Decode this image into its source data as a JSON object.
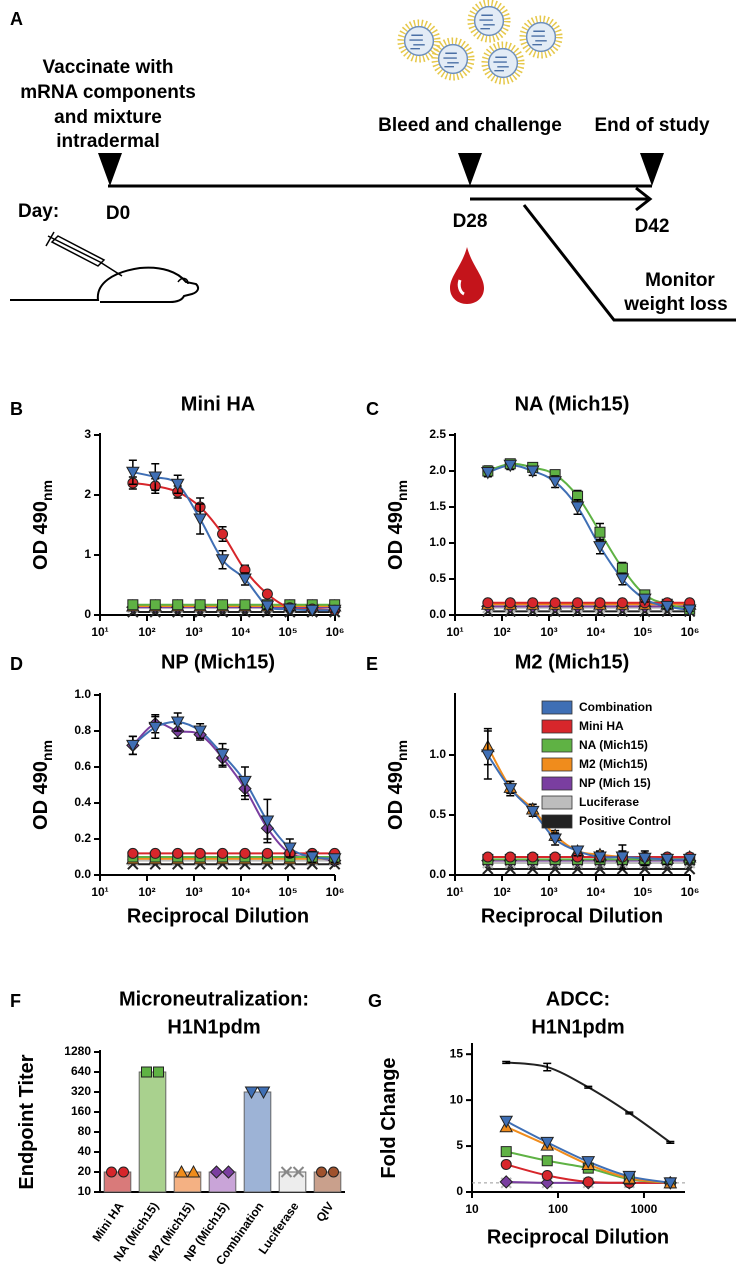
{
  "panel_a": {
    "letter": "A",
    "vaccinate": [
      "Vaccinate with",
      "mRNA components",
      "and mixture",
      "intradermal"
    ],
    "bleed": "Bleed and challenge",
    "end": "End of study",
    "day": "Day:",
    "d0": "D0",
    "d28": "D28",
    "d42": "D42",
    "monitor": [
      "Monitor",
      "weight loss"
    ]
  },
  "chart_data": [
    {
      "type": "line",
      "panel": "B",
      "title": "Mini HA",
      "ylabel": "OD 490",
      "ylabel_sub": "nm",
      "xscale": "log",
      "x": [
        50,
        150,
        450,
        1350,
        4050,
        12150,
        36450,
        109350,
        328050,
        984150
      ],
      "xlim": [
        10,
        1000000
      ],
      "xticks": [
        {
          "value": 10,
          "label": "10¹"
        },
        {
          "value": 100,
          "label": "10²"
        },
        {
          "value": 1000,
          "label": "10³"
        },
        {
          "value": 10000,
          "label": "10⁴"
        },
        {
          "value": 100000,
          "label": "10⁵"
        },
        {
          "value": 1000000,
          "label": "10⁶"
        }
      ],
      "ylim": [
        0,
        3
      ],
      "yticks": [
        0,
        1,
        2,
        3
      ],
      "series": [
        {
          "name": "Combination",
          "color": "#3f6fb5",
          "marker": "triangle-down",
          "values": [
            2.38,
            2.3,
            2.18,
            1.6,
            0.92,
            0.6,
            0.15,
            0.1,
            0.08,
            0.08
          ],
          "errors": [
            0.2,
            0.22,
            0.15,
            0.25,
            0.15,
            0.1,
            0.05,
            0.03,
            0.03,
            0.03
          ]
        },
        {
          "name": "Mini HA",
          "color": "#d7262b",
          "marker": "circle",
          "values": [
            2.2,
            2.15,
            2.05,
            1.8,
            1.35,
            0.75,
            0.35,
            0.12,
            0.1,
            0.08
          ],
          "errors": [
            0.1,
            0.12,
            0.1,
            0.15,
            0.12,
            0.08,
            0.05,
            0.03,
            0.02,
            0.02
          ]
        },
        {
          "name": "NA (Mich15)",
          "color": "#5fb244",
          "marker": "square",
          "values": [
            0.17,
            0.17,
            0.17,
            0.17,
            0.17,
            0.17,
            0.17,
            0.17,
            0.17,
            0.17
          ]
        },
        {
          "name": "M2 (Mich15)",
          "color": "#f08c1c",
          "marker": "triangle",
          "values": [
            0.15,
            0.15,
            0.15,
            0.15,
            0.15,
            0.15,
            0.15,
            0.15,
            0.15,
            0.15
          ]
        },
        {
          "name": "NP (Mich 15)",
          "color": "#7a3ea0",
          "marker": "diamond",
          "values": [
            0.13,
            0.13,
            0.13,
            0.13,
            0.13,
            0.13,
            0.13,
            0.13,
            0.13,
            0.13
          ]
        },
        {
          "name": "Luciferase",
          "color": "#bdbdbd",
          "marker": "x",
          "values": [
            0.12,
            0.12,
            0.12,
            0.12,
            0.12,
            0.12,
            0.12,
            0.12,
            0.12,
            0.12
          ]
        },
        {
          "name": "Positive Control",
          "color": "#222222",
          "marker": "x",
          "values": [
            0.05,
            0.05,
            0.05,
            0.05,
            0.05,
            0.05,
            0.05,
            0.05,
            0.05,
            0.05
          ]
        }
      ]
    },
    {
      "type": "line",
      "panel": "C",
      "title": "NA (Mich15)",
      "ylabel": "OD 490",
      "ylabel_sub": "nm",
      "xscale": "log",
      "x": [
        50,
        150,
        450,
        1350,
        4050,
        12150,
        36450,
        109350,
        328050,
        984150
      ],
      "xlim": [
        10,
        1000000
      ],
      "xticks": [
        {
          "value": 10,
          "label": "10¹"
        },
        {
          "value": 100,
          "label": "10²"
        },
        {
          "value": 1000,
          "label": "10³"
        },
        {
          "value": 10000,
          "label": "10⁴"
        },
        {
          "value": 100000,
          "label": "10⁵"
        },
        {
          "value": 1000000,
          "label": "10⁶"
        }
      ],
      "ylim": [
        0,
        2.5
      ],
      "yticks": [
        {
          "value": 0,
          "label": "0.0"
        },
        0.5,
        {
          "value": 1,
          "label": "1.0"
        },
        1.5,
        {
          "value": 2,
          "label": "2.0"
        },
        2.5
      ],
      "series": [
        {
          "name": "Combination",
          "color": "#3f6fb5",
          "marker": "triangle-down",
          "values": [
            1.98,
            2.08,
            2.0,
            1.85,
            1.5,
            0.95,
            0.5,
            0.22,
            0.12,
            0.07
          ],
          "errors": [
            0.06,
            0.06,
            0.06,
            0.08,
            0.1,
            0.1,
            0.08,
            0.04,
            0.03,
            0.02
          ]
        },
        {
          "name": "Mini HA",
          "color": "#d7262b",
          "marker": "circle",
          "values": [
            0.17,
            0.17,
            0.17,
            0.17,
            0.17,
            0.17,
            0.17,
            0.17,
            0.17,
            0.17
          ]
        },
        {
          "name": "NA (Mich15)",
          "color": "#5fb244",
          "marker": "square",
          "values": [
            2.0,
            2.1,
            2.05,
            1.95,
            1.65,
            1.15,
            0.65,
            0.28,
            0.15,
            0.08
          ],
          "errors": [
            0.07,
            0.06,
            0.05,
            0.06,
            0.08,
            0.12,
            0.08,
            0.05,
            0.03,
            0.02
          ]
        },
        {
          "name": "M2 (Mich15)",
          "color": "#f08c1c",
          "marker": "triangle",
          "values": [
            0.15,
            0.15,
            0.15,
            0.15,
            0.15,
            0.15,
            0.15,
            0.15,
            0.15,
            0.15
          ]
        },
        {
          "name": "NP (Mich 15)",
          "color": "#7a3ea0",
          "marker": "diamond",
          "values": [
            0.12,
            0.12,
            0.12,
            0.12,
            0.12,
            0.12,
            0.12,
            0.12,
            0.12,
            0.12
          ]
        },
        {
          "name": "Luciferase",
          "color": "#bdbdbd",
          "marker": "x",
          "values": [
            0.1,
            0.1,
            0.1,
            0.1,
            0.1,
            0.1,
            0.1,
            0.1,
            0.1,
            0.1
          ]
        },
        {
          "name": "Positive Control",
          "color": "#222222",
          "marker": "x",
          "values": [
            0.05,
            0.05,
            0.05,
            0.05,
            0.05,
            0.05,
            0.05,
            0.05,
            0.05,
            0.05
          ]
        }
      ]
    },
    {
      "type": "line",
      "panel": "D",
      "title": "NP (Mich15)",
      "ylabel": "OD 490",
      "ylabel_sub": "nm",
      "xlabel": "Reciprocal Dilution",
      "xscale": "log",
      "x": [
        50,
        150,
        450,
        1350,
        4050,
        12150,
        36450,
        109350,
        328050,
        984150
      ],
      "xlim": [
        10,
        1000000
      ],
      "xticks": [
        {
          "value": 10,
          "label": "10¹"
        },
        {
          "value": 100,
          "label": "10²"
        },
        {
          "value": 1000,
          "label": "10³"
        },
        {
          "value": 10000,
          "label": "10⁴"
        },
        {
          "value": 100000,
          "label": "10⁵"
        },
        {
          "value": 1000000,
          "label": "10⁶"
        }
      ],
      "ylim": [
        0,
        1
      ],
      "yticks": [
        {
          "value": 0,
          "label": "0.0"
        },
        0.2,
        0.4,
        0.6,
        0.8,
        {
          "value": 1,
          "label": "1.0"
        }
      ],
      "series": [
        {
          "name": "Combination",
          "color": "#3f6fb5",
          "marker": "triangle-down",
          "values": [
            0.72,
            0.82,
            0.85,
            0.8,
            0.67,
            0.52,
            0.3,
            0.15,
            0.1,
            0.09
          ],
          "errors": [
            0.05,
            0.06,
            0.05,
            0.04,
            0.06,
            0.08,
            0.12,
            0.05,
            0.03,
            0.02
          ]
        },
        {
          "name": "Mini HA",
          "color": "#d7262b",
          "marker": "circle",
          "values": [
            0.12,
            0.12,
            0.12,
            0.12,
            0.12,
            0.12,
            0.12,
            0.12,
            0.12,
            0.12
          ]
        },
        {
          "name": "NA (Mich15)",
          "color": "#5fb244",
          "marker": "square",
          "values": [
            0.1,
            0.1,
            0.1,
            0.1,
            0.1,
            0.1,
            0.1,
            0.1,
            0.1,
            0.1
          ]
        },
        {
          "name": "M2 (Mich15)",
          "color": "#f08c1c",
          "marker": "triangle",
          "values": [
            0.09,
            0.09,
            0.09,
            0.09,
            0.09,
            0.09,
            0.09,
            0.09,
            0.09,
            0.09
          ]
        },
        {
          "name": "NP (Mich 15)",
          "color": "#7a3ea0",
          "marker": "diamond",
          "values": [
            0.72,
            0.84,
            0.8,
            0.78,
            0.65,
            0.48,
            0.26,
            0.12,
            0.1,
            0.08
          ],
          "errors": [
            0.05,
            0.05,
            0.04,
            0.03,
            0.05,
            0.06,
            0.06,
            0.04,
            0.02,
            0.02
          ]
        },
        {
          "name": "Luciferase",
          "color": "#bdbdbd",
          "marker": "x",
          "values": [
            0.08,
            0.08,
            0.08,
            0.08,
            0.08,
            0.08,
            0.08,
            0.08,
            0.08,
            0.08
          ]
        },
        {
          "name": "Positive Control",
          "color": "#222222",
          "marker": "x",
          "values": [
            0.06,
            0.06,
            0.06,
            0.06,
            0.06,
            0.06,
            0.06,
            0.06,
            0.06,
            0.06
          ]
        }
      ]
    },
    {
      "type": "line",
      "panel": "E",
      "title": "M2 (Mich15)",
      "ylabel": "OD 490",
      "ylabel_sub": "nm",
      "xlabel": "Reciprocal Dilution",
      "xscale": "log",
      "legend": "upper right",
      "x": [
        50,
        150,
        450,
        1350,
        4050,
        12150,
        36450,
        109350,
        328050,
        984150
      ],
      "xlim": [
        10,
        1000000
      ],
      "xticks": [
        {
          "value": 10,
          "label": "10¹"
        },
        {
          "value": 100,
          "label": "10²"
        },
        {
          "value": 1000,
          "label": "10³"
        },
        {
          "value": 10000,
          "label": "10⁴"
        },
        {
          "value": 100000,
          "label": "10⁵"
        },
        {
          "value": 1000000,
          "label": "10⁶"
        }
      ],
      "ylim": [
        0,
        1.5
      ],
      "yticks": [
        {
          "value": 0,
          "label": "0.0"
        },
        0.5,
        {
          "value": 1,
          "label": "1.0"
        }
      ],
      "series": [
        {
          "name": "Combination",
          "color": "#3f6fb5",
          "marker": "triangle-down",
          "values": [
            1.0,
            0.72,
            0.53,
            0.3,
            0.2,
            0.15,
            0.15,
            0.14,
            0.13,
            0.13
          ],
          "errors": [
            0.2,
            0.06,
            0.04,
            0.05,
            0.04,
            0.04,
            0.1,
            0.06,
            0.04,
            0.03
          ]
        },
        {
          "name": "Mini HA",
          "color": "#d7262b",
          "marker": "circle",
          "values": [
            0.15,
            0.15,
            0.15,
            0.15,
            0.15,
            0.15,
            0.15,
            0.15,
            0.15,
            0.15
          ]
        },
        {
          "name": "NA (Mich15)",
          "color": "#5fb244",
          "marker": "square",
          "values": [
            0.13,
            0.13,
            0.13,
            0.13,
            0.13,
            0.13,
            0.13,
            0.13,
            0.13,
            0.13
          ]
        },
        {
          "name": "M2 (Mich15)",
          "color": "#f08c1c",
          "marker": "triangle",
          "values": [
            1.07,
            0.73,
            0.55,
            0.33,
            0.2,
            0.17,
            0.15,
            0.14,
            0.14,
            0.15
          ],
          "errors": [
            0.15,
            0.05,
            0.04,
            0.04,
            0.03,
            0.03,
            0.05,
            0.04,
            0.03,
            0.03
          ]
        },
        {
          "name": "NP (Mich 15)",
          "color": "#7a3ea0",
          "marker": "diamond",
          "values": [
            0.12,
            0.12,
            0.12,
            0.12,
            0.12,
            0.12,
            0.12,
            0.12,
            0.12,
            0.12
          ]
        },
        {
          "name": "Luciferase",
          "color": "#bdbdbd",
          "marker": "x",
          "values": [
            0.1,
            0.1,
            0.1,
            0.1,
            0.1,
            0.1,
            0.1,
            0.1,
            0.1,
            0.1
          ]
        },
        {
          "name": "Positive Control",
          "color": "#222222",
          "marker": "x",
          "values": [
            0.05,
            0.05,
            0.05,
            0.05,
            0.05,
            0.05,
            0.05,
            0.05,
            0.05,
            0.05
          ]
        }
      ]
    },
    {
      "type": "bar",
      "panel": "F",
      "title_lines": [
        "Microneutralization:",
        "H1N1pdm"
      ],
      "ylabel": "Endpoint Titer",
      "yscale": "log",
      "categories": [
        "Mini HA",
        "NA (Mich15)",
        "M2 (Mich15)",
        "NP (Mich15)",
        "Combination",
        "Luciferase",
        "QIV"
      ],
      "values": [
        20,
        640,
        20,
        20,
        320,
        20,
        20
      ],
      "colors": [
        "#d97a7a",
        "#a9d18e",
        "#f4b183",
        "#c9a4d8",
        "#9db3d6",
        "#ededed",
        "#c9a08c"
      ],
      "point_colors": [
        "#d7262b",
        "#5fb244",
        "#f08c1c",
        "#7a3ea0",
        "#3f6fb5",
        "#888888",
        "#a0522d"
      ],
      "markers": [
        "circle",
        "square",
        "triangle",
        "diamond",
        "triangle-down",
        "x",
        "circle"
      ],
      "ylim": [
        10,
        1280
      ],
      "yticks": [
        10,
        20,
        40,
        80,
        160,
        320,
        640,
        1280
      ]
    },
    {
      "type": "line",
      "panel": "G",
      "title_lines": [
        "ADCC:",
        "H1N1pdm"
      ],
      "ylabel": "Fold Change",
      "xlabel": "Reciprocal Dilution",
      "xscale": "log",
      "x": [
        25,
        75,
        225,
        675,
        2025
      ],
      "xlim": [
        10,
        3000
      ],
      "xticks": [
        10,
        100,
        1000
      ],
      "ylim": [
        0,
        16
      ],
      "yticks": [
        0,
        5,
        10,
        15
      ],
      "reference_line": 1,
      "series": [
        {
          "name": "Positive Control",
          "color": "#222222",
          "marker": "none",
          "values": [
            14.1,
            13.6,
            11.4,
            8.6,
            5.4
          ],
          "errors": [
            0.1,
            0.4,
            0.1,
            0.1,
            0.1
          ]
        },
        {
          "name": "Combination",
          "color": "#3f6fb5",
          "marker": "triangle-down",
          "values": [
            7.7,
            5.4,
            3.3,
            1.7,
            1.0
          ]
        },
        {
          "name": "M2 (Mich15)",
          "color": "#f08c1c",
          "marker": "triangle",
          "values": [
            7.1,
            5.1,
            3.0,
            1.5,
            1.0
          ]
        },
        {
          "name": "NA (Mich15)",
          "color": "#5fb244",
          "marker": "square",
          "values": [
            4.4,
            3.4,
            2.6,
            1.4,
            1.0
          ]
        },
        {
          "name": "Mini HA",
          "color": "#d7262b",
          "marker": "circle",
          "values": [
            3.0,
            1.8,
            1.1,
            1.0,
            1.0
          ]
        },
        {
          "name": "NP (Mich 15)",
          "color": "#7a3ea0",
          "marker": "diamond",
          "values": [
            1.1,
            1.0,
            1.0,
            1.0,
            1.0
          ]
        },
        {
          "name": "Luciferase",
          "color": "#bdbdbd",
          "marker": "x",
          "values": [
            1.0,
            1.0,
            1.0,
            1.0,
            1.0
          ]
        }
      ]
    }
  ]
}
